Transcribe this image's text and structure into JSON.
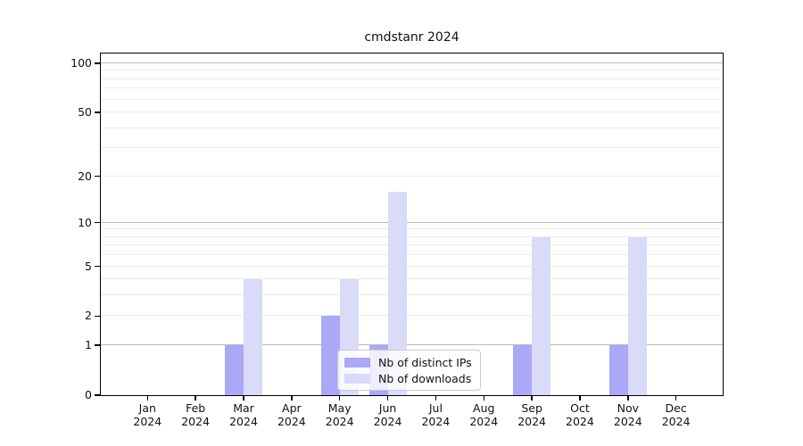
{
  "chart_data": {
    "type": "bar",
    "title": "cmdstanr 2024",
    "categories": [
      "Jan",
      "Feb",
      "Mar",
      "Apr",
      "May",
      "Jun",
      "Jul",
      "Aug",
      "Sep",
      "Oct",
      "Nov",
      "Dec"
    ],
    "year_label": "2024",
    "series": [
      {
        "name": "Nb of distinct IPs",
        "color": "#a9a9f7",
        "values": [
          0,
          0,
          1,
          0,
          2,
          1,
          0,
          0,
          1,
          0,
          1,
          0
        ]
      },
      {
        "name": "Nb of downloads",
        "color": "#dadaf9",
        "values": [
          0,
          0,
          4,
          0,
          4,
          16,
          0,
          0,
          8,
          0,
          8,
          0
        ]
      }
    ],
    "y_axis": {
      "scale": "log1p",
      "ticks": [
        0,
        1,
        2,
        5,
        10,
        20,
        50,
        100
      ],
      "top_value": 115,
      "major_gridlines": [
        1,
        10,
        100
      ],
      "minor_gridlines": [
        2,
        3,
        4,
        5,
        6,
        7,
        8,
        9,
        20,
        30,
        40,
        50,
        60,
        70,
        80,
        90
      ]
    },
    "x_axis": {
      "tick_label_line2": "2024"
    },
    "legend": {
      "position": "lower-center"
    },
    "colors": {
      "major_grid": "#b9b9b9",
      "minor_grid": "#ececec",
      "axis": "#000000",
      "background": "#ffffff"
    }
  }
}
